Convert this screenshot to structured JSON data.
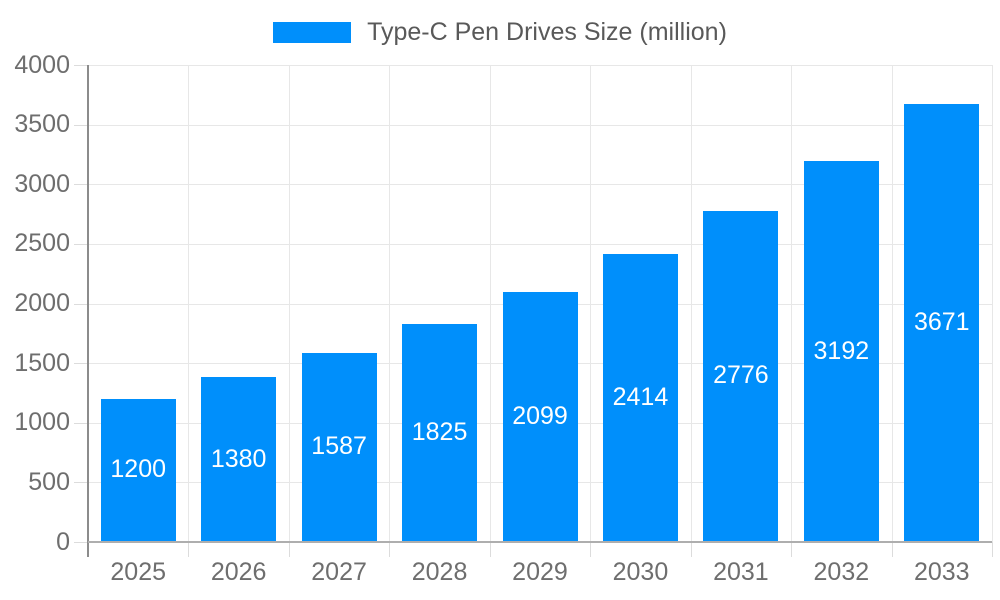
{
  "legend": {
    "label": "Type-C Pen Drives Size (million)"
  },
  "chart_data": {
    "type": "bar",
    "title": "Type-C Pen Drives Size (million)",
    "categories": [
      "2025",
      "2026",
      "2027",
      "2028",
      "2029",
      "2030",
      "2031",
      "2032",
      "2033"
    ],
    "values": [
      1200,
      1380,
      1587,
      1825,
      2099,
      2414,
      2776,
      3192,
      3671
    ],
    "xlabel": "",
    "ylabel": "",
    "ylim": [
      0,
      4000
    ],
    "yticks": [
      0,
      500,
      1000,
      1500,
      2000,
      2500,
      3000,
      3500,
      4000
    ],
    "grid": true,
    "legend_position": "top-center",
    "bar_color": "#008FFB",
    "bar_label_color": "#ffffff",
    "axis_label_color": "#6e6e6e",
    "legend_text_color": "#595959"
  }
}
